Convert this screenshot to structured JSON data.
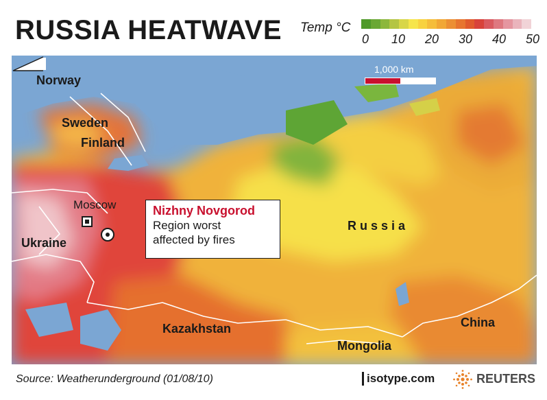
{
  "title": "RUSSIA HEATWAVE",
  "legend": {
    "label": "Temp °C",
    "tick_labels": [
      "0",
      "10",
      "20",
      "30",
      "40",
      "50"
    ],
    "colors": [
      "#4f9a2a",
      "#6aa834",
      "#8cb73c",
      "#b4c543",
      "#d8d648",
      "#f6e54a",
      "#f8d23f",
      "#f5bd3a",
      "#f1a735",
      "#ec8f33",
      "#e7752f",
      "#e05a2d",
      "#d8423a",
      "#d95a60",
      "#de7880",
      "#e596a0",
      "#eab4bc",
      "#f1d3d7"
    ]
  },
  "map_scale": {
    "label": "1,000 km",
    "colors": [
      "#c8102e",
      "#ffffff"
    ]
  },
  "labels": {
    "norway": "Norway",
    "sweden": "Sweden",
    "finland": "Finland",
    "moscow": "Moscow",
    "ukraine": "Ukraine",
    "russia": "R u s s i a",
    "kazakhstan": "Kazakhstan",
    "mongolia": "Mongolia",
    "china": "China"
  },
  "callout": {
    "title": "Nizhny Novgorod",
    "line1": "Region worst",
    "line2": "affected by fires"
  },
  "colors": {
    "water": "#7ba6d3",
    "accent": "#c8102e"
  },
  "footer": {
    "source": "Source: Weatherunderground (01/08/10)",
    "isotype": "isotype.com",
    "reuters": "REUTERS"
  }
}
